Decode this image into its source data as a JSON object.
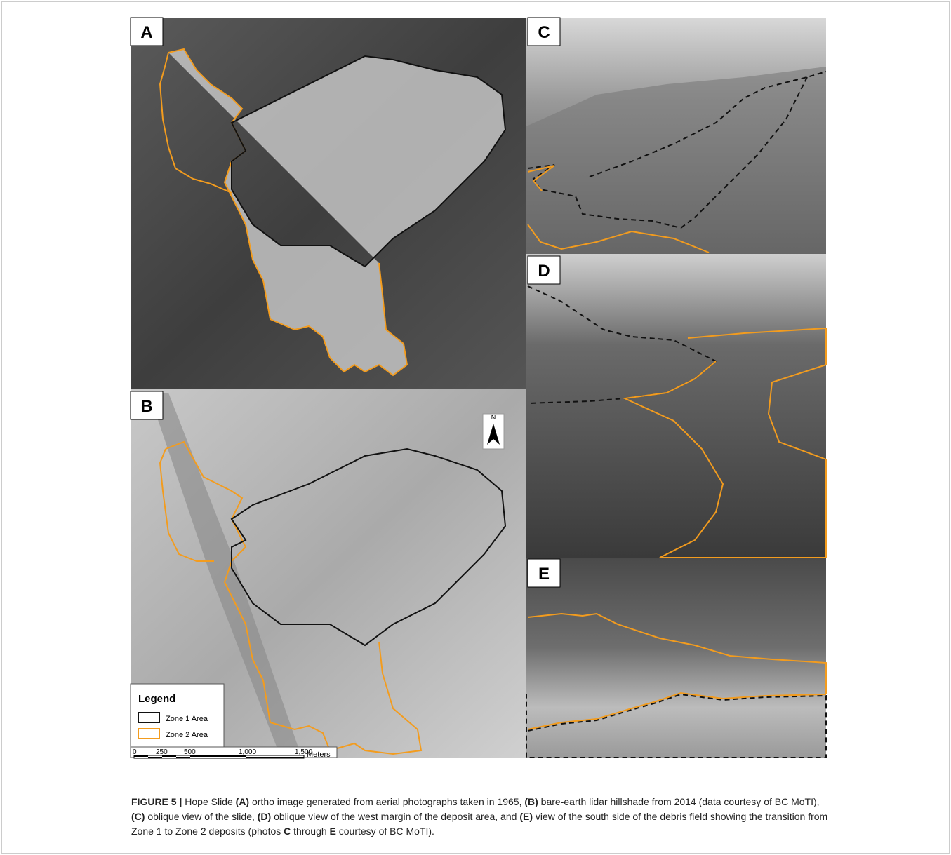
{
  "panels": {
    "a": "A",
    "b": "B",
    "c": "C",
    "d": "D",
    "e": "E"
  },
  "north": "N",
  "legend": {
    "title": "Legend",
    "items": [
      "Zone 1 Area",
      "Zone 2 Area"
    ]
  },
  "scale": {
    "labels": [
      "0",
      "250",
      "500",
      "1,000",
      "1,500"
    ],
    "unit": "Meters"
  },
  "caption": [
    "FIGURE 5 |",
    " Hope Slide ",
    "(A)",
    " ortho image generated from aerial photographs taken in 1965, ",
    "(B)",
    " bare-earth lidar hillshade from 2014 (data courtesy of BC MoTI), ",
    "(C)",
    " oblique view of the slide, ",
    "(D)",
    " oblique view of the west margin of the deposit area, and ",
    "(E)",
    " view of the south side of the debris field showing the transition from Zone 1 to Zone 2 deposits (photos ",
    "C",
    " through ",
    "E",
    " courtesy of BC MoTI)."
  ]
}
